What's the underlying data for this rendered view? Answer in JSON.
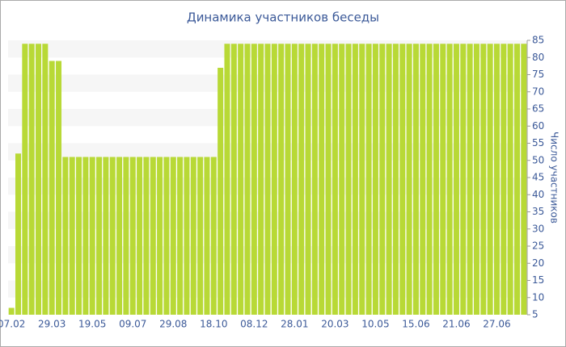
{
  "chart_data": {
    "type": "bar",
    "title": "Динамика участников беседы",
    "y_label": "Число участников",
    "categories": [
      "07.02",
      null,
      null,
      null,
      null,
      null,
      "29.03",
      null,
      null,
      null,
      null,
      null,
      "19.05",
      null,
      null,
      null,
      null,
      null,
      "09.07",
      null,
      null,
      null,
      null,
      null,
      "29.08",
      null,
      null,
      null,
      null,
      null,
      "18.10",
      null,
      null,
      null,
      null,
      null,
      "08.12",
      null,
      null,
      null,
      null,
      null,
      "28.01",
      null,
      null,
      null,
      null,
      null,
      "20.03",
      null,
      null,
      null,
      null,
      null,
      "10.05",
      null,
      null,
      null,
      null,
      null,
      "15.06",
      null,
      null,
      null,
      null,
      null,
      "21.06",
      null,
      null,
      null,
      null,
      null,
      "27.06",
      null,
      null,
      null,
      null
    ],
    "values": [
      7,
      52,
      84,
      84,
      84,
      84,
      79,
      79,
      51,
      51,
      51,
      51,
      51,
      51,
      51,
      51,
      51,
      51,
      51,
      51,
      51,
      51,
      51,
      51,
      51,
      51,
      51,
      51,
      51,
      51,
      51,
      77,
      84,
      84,
      84,
      84,
      84,
      84,
      84,
      84,
      84,
      84,
      84,
      84,
      84,
      84,
      84,
      84,
      84,
      84,
      84,
      84,
      84,
      84,
      84,
      84,
      84,
      84,
      84,
      84,
      84,
      84,
      84,
      84,
      84,
      84,
      84,
      84,
      84,
      84,
      84,
      84,
      84,
      84,
      84,
      84,
      84
    ],
    "color": "#b8d936",
    "ylim": [
      5,
      85
    ],
    "yticks": [
      5,
      10,
      15,
      20,
      25,
      30,
      35,
      40,
      45,
      50,
      55,
      60,
      65,
      70,
      75,
      80,
      85
    ],
    "grid": true
  }
}
